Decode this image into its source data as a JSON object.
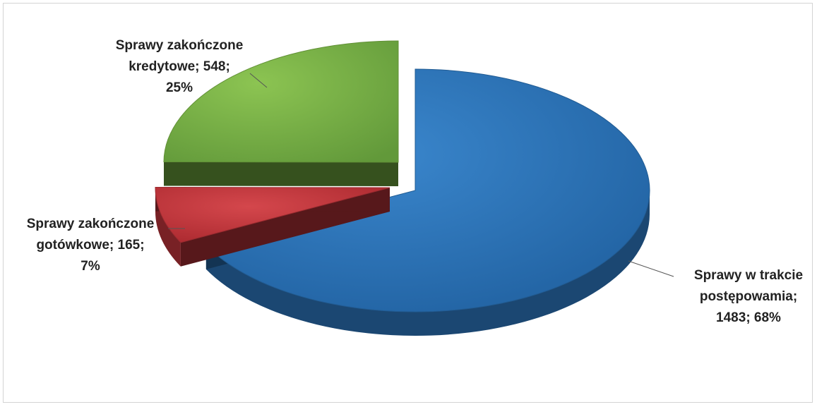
{
  "chart_data": {
    "type": "pie",
    "style": "3d-exploded",
    "slices": [
      {
        "label": "Sprawy w trakcie postępowamia",
        "value": 1483,
        "percent": 68,
        "color": "#2b73b8",
        "text_lines": [
          "Sprawy w trakcie",
          "postępowamia;",
          "1483; 68%"
        ]
      },
      {
        "label": "Sprawy zakończone gotówkowe",
        "value": 165,
        "percent": 7,
        "color": "#c2363c",
        "text_lines": [
          "Sprawy zakończone",
          "gotówkowe; 165;",
          "7%"
        ]
      },
      {
        "label": "Sprawy zakończone kredytowe",
        "value": 548,
        "percent": 25,
        "color": "#79b443",
        "text_lines": [
          "Sprawy zakończone",
          "kredytowe; 548;",
          "25%"
        ]
      }
    ],
    "legend": "none"
  }
}
